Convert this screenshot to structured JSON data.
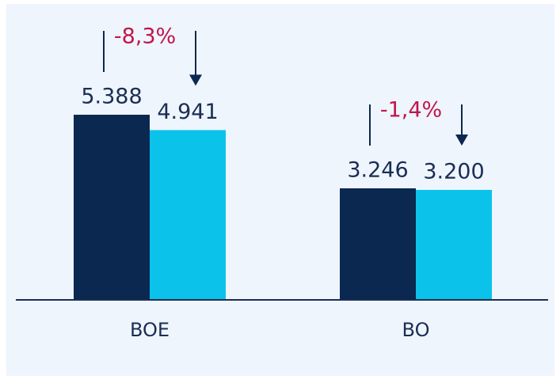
{
  "chart_data": {
    "type": "bar",
    "categories": [
      "BOE",
      "BO"
    ],
    "series": [
      {
        "color": "#0b2850",
        "values": [
          5388,
          3246
        ],
        "value_labels": [
          "5.388",
          "3.246"
        ]
      },
      {
        "color": "#0bc3ea",
        "values": [
          4941,
          3200
        ],
        "value_labels": [
          "4.941",
          "3.200"
        ]
      }
    ],
    "annotations": [
      "-8,3%",
      "-1,4%"
    ]
  }
}
